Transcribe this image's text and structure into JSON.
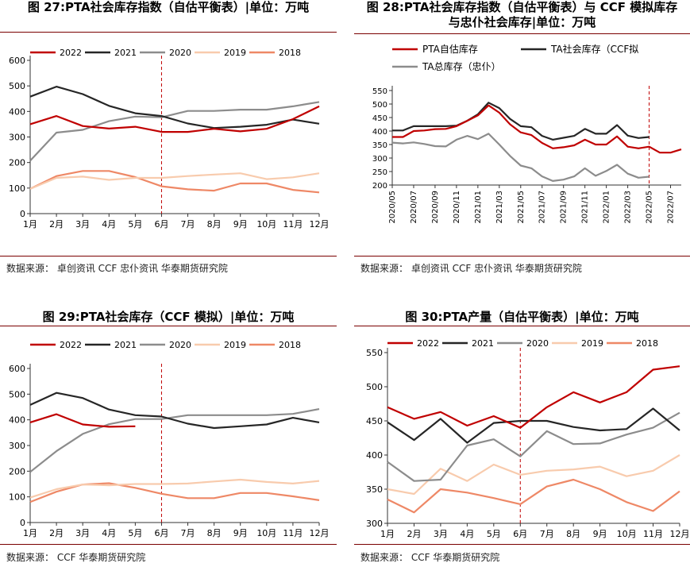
{
  "panels": [
    {
      "title": "图 27:PTA社会库存指数（自估平衡表）|单位：万吨",
      "source": "数据来源：  卓创资讯  CCF 忠仆资讯  华泰期货研究院"
    },
    {
      "title": "图 28:PTA社会库存指数（自估平衡表）与 CCF 模拟库存与忠仆社会库存|单位：万吨",
      "title_lines": [
        "图 28:PTA社会库存指数（自估平衡表）与 CCF 模拟库存",
        "与忠仆社会库存|单位：万吨"
      ],
      "source": "数据来源：  卓创资讯  CCF 忠仆资讯  华泰期货研究院"
    },
    {
      "title": "图 29:PTA社会库存（CCF 模拟）|单位：万吨",
      "source": "数据来源：  CCF  华泰期货研究院"
    },
    {
      "title": "图 30:PTA产量（自估平衡表）|单位：万吨",
      "source": "数据来源：  CCF  华泰期货研究院"
    }
  ],
  "colors": {
    "2022": "#c00000",
    "2021": "#262626",
    "2020": "#8c8c8c",
    "2019": "#f8cbad",
    "2018": "#ee8866",
    "accent_rule": "#7a0000",
    "marker_line": "#c00000"
  },
  "chart_data": [
    {
      "type": "line",
      "categories": [
        "1月",
        "2月",
        "3月",
        "4月",
        "5月",
        "6月",
        "7月",
        "8月",
        "9月",
        "10月",
        "11月",
        "12月"
      ],
      "ylim": [
        0,
        600
      ],
      "yticks": [
        0,
        100,
        200,
        300,
        400,
        500,
        600
      ],
      "grid": false,
      "legend": "top",
      "marker_category": "6月",
      "series": [
        {
          "name": "2022",
          "values": [
            350,
            382,
            343,
            333,
            340,
            320,
            320,
            332,
            322,
            332,
            370,
            420
          ]
        },
        {
          "name": "2021",
          "values": [
            458,
            497,
            468,
            422,
            393,
            382,
            353,
            335,
            340,
            348,
            368,
            352
          ]
        },
        {
          "name": "2020",
          "values": [
            207,
            317,
            328,
            362,
            380,
            377,
            402,
            402,
            407,
            407,
            420,
            437
          ]
        },
        {
          "name": "2019",
          "values": [
            97,
            140,
            145,
            132,
            140,
            140,
            147,
            153,
            158,
            135,
            142,
            158
          ]
        },
        {
          "name": "2018",
          "values": [
            97,
            147,
            167,
            167,
            143,
            107,
            95,
            90,
            118,
            118,
            93,
            83
          ]
        }
      ]
    },
    {
      "type": "line",
      "categories": [
        "2020/05",
        "2020/06",
        "2020/07",
        "2020/08",
        "2020/09",
        "2020/10",
        "2020/11",
        "2020/12",
        "2021/01",
        "2021/02",
        "2021/03",
        "2021/04",
        "2021/05",
        "2021/06",
        "2021/07",
        "2021/08",
        "2021/09",
        "2021/10",
        "2021/11",
        "2021/12",
        "2022/01",
        "2022/02",
        "2022/03",
        "2022/04",
        "2022/05",
        "2022/06",
        "2022/07",
        "2022/08"
      ],
      "xtick_labels": [
        "2020/05",
        "2020/07",
        "2020/09",
        "2020/11",
        "2021/01",
        "2021/03",
        "2021/05",
        "2021/07",
        "2021/09",
        "2021/11",
        "2022/01",
        "2022/03",
        "2022/05",
        "2022/07"
      ],
      "ylim": [
        200,
        550
      ],
      "yticks": [
        200,
        250,
        300,
        350,
        400,
        450,
        500,
        550
      ],
      "grid": false,
      "legend": "top",
      "marker_category": "2022/05",
      "series": [
        {
          "name": "PTA自估库存",
          "values": [
            378,
            378,
            400,
            402,
            407,
            408,
            418,
            438,
            458,
            495,
            468,
            425,
            395,
            385,
            356,
            336,
            340,
            347,
            368,
            350,
            350,
            380,
            342,
            336,
            342,
            320,
            320,
            332
          ]
        },
        {
          "name": "TA社会库存（CCF拟",
          "values": [
            402,
            402,
            418,
            418,
            418,
            418,
            420,
            438,
            462,
            505,
            485,
            445,
            418,
            414,
            382,
            368,
            375,
            382,
            408,
            390,
            390,
            422,
            383,
            374,
            378,
            null,
            null,
            null
          ]
        },
        {
          "name": "TA总库存（忠仆）",
          "values": [
            357,
            354,
            358,
            352,
            344,
            343,
            368,
            382,
            370,
            390,
            350,
            308,
            272,
            262,
            232,
            215,
            220,
            232,
            262,
            234,
            252,
            275,
            242,
            227,
            231,
            null,
            null,
            null
          ]
        }
      ]
    },
    {
      "type": "line",
      "categories": [
        "1月",
        "2月",
        "3月",
        "4月",
        "5月",
        "6月",
        "7月",
        "8月",
        "9月",
        "10月",
        "11月",
        "12月"
      ],
      "ylim": [
        0,
        600
      ],
      "yticks": [
        0,
        100,
        200,
        300,
        400,
        500,
        600
      ],
      "grid": false,
      "legend": "top",
      "marker_category": "6月",
      "series": [
        {
          "name": "2022",
          "values": [
            390,
            422,
            382,
            373,
            375,
            null,
            null,
            null,
            null,
            null,
            null,
            null
          ]
        },
        {
          "name": "2021",
          "values": [
            458,
            505,
            485,
            440,
            418,
            413,
            385,
            368,
            375,
            382,
            408,
            390
          ]
        },
        {
          "name": "2020",
          "values": [
            197,
            278,
            345,
            383,
            403,
            403,
            418,
            418,
            418,
            418,
            423,
            442
          ]
        },
        {
          "name": "2019",
          "values": [
            97,
            130,
            148,
            145,
            150,
            150,
            152,
            160,
            167,
            158,
            152,
            162
          ]
        },
        {
          "name": "2018",
          "values": [
            80,
            120,
            148,
            153,
            135,
            112,
            95,
            95,
            115,
            115,
            102,
            87
          ]
        }
      ]
    },
    {
      "type": "line",
      "categories": [
        "1月",
        "2月",
        "3月",
        "4月",
        "5月",
        "6月",
        "7月",
        "8月",
        "9月",
        "10月",
        "11月",
        "12月"
      ],
      "ylim": [
        300,
        550
      ],
      "yticks": [
        300,
        350,
        400,
        450,
        500,
        550
      ],
      "grid": false,
      "legend": "top",
      "marker_category": "6月",
      "series": [
        {
          "name": "2022",
          "values": [
            470,
            453,
            463,
            443,
            457,
            440,
            470,
            492,
            477,
            492,
            525,
            530
          ]
        },
        {
          "name": "2021",
          "values": [
            448,
            422,
            453,
            418,
            447,
            450,
            450,
            441,
            436,
            438,
            468,
            436
          ]
        },
        {
          "name": "2020",
          "values": [
            390,
            362,
            364,
            414,
            423,
            398,
            435,
            416,
            417,
            430,
            440,
            462
          ]
        },
        {
          "name": "2019",
          "values": [
            350,
            343,
            380,
            362,
            386,
            371,
            377,
            379,
            383,
            369,
            377,
            400
          ]
        },
        {
          "name": "2018",
          "values": [
            335,
            316,
            350,
            345,
            337,
            328,
            354,
            364,
            350,
            331,
            318,
            347
          ]
        }
      ]
    }
  ]
}
